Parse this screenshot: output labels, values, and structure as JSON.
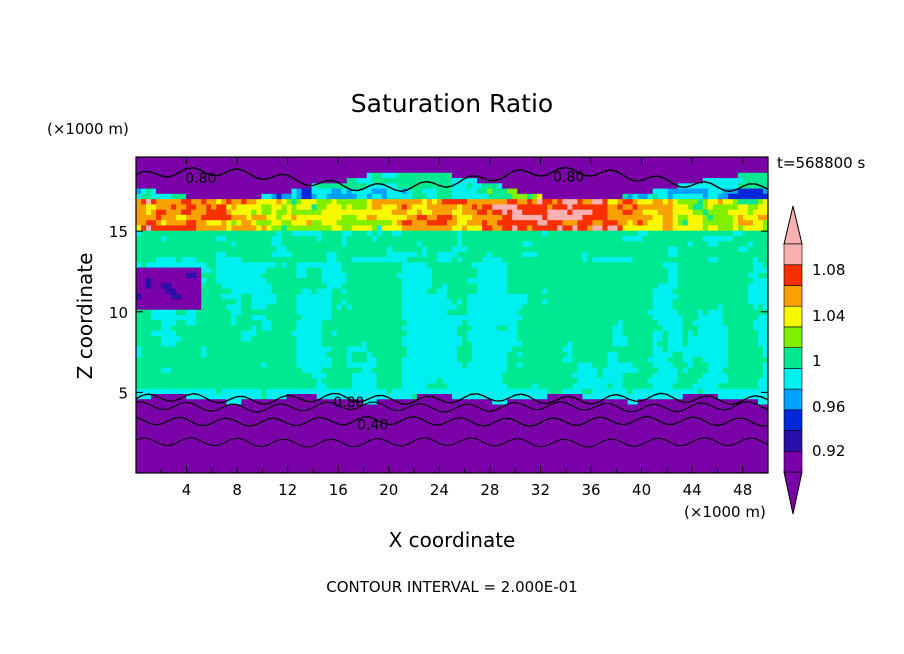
{
  "chart_data": {
    "type": "heatmap",
    "title": "Saturation Ratio",
    "xlabel": "X coordinate",
    "ylabel": "Z coordinate",
    "x_unit": "(×1000 m)",
    "y_unit": "(×1000 m)",
    "time_label": "t=568800 s",
    "footer": "CONTOUR INTERVAL = 2.000E-01",
    "xlim": [
      0,
      50
    ],
    "ylim": [
      0,
      19.6
    ],
    "x_ticks": [
      "4",
      "8",
      "12",
      "16",
      "20",
      "24",
      "28",
      "32",
      "36",
      "40",
      "44",
      "48"
    ],
    "y_ticks": [
      "5",
      "10",
      "15"
    ],
    "colorbar": {
      "labels": [
        "1.08",
        "1.04",
        "1",
        "0.96",
        "0.92"
      ],
      "levels": [
        0.9,
        0.92,
        0.94,
        0.96,
        0.98,
        1.0,
        1.02,
        1.04,
        1.06,
        1.08,
        1.1
      ],
      "colors": [
        "#7a00a8",
        "#2a10a8",
        "#0028d8",
        "#00a0ff",
        "#00f0f0",
        "#00e890",
        "#80f000",
        "#f8f800",
        "#f8a000",
        "#f83000",
        "#f8b0b0"
      ],
      "under_color": "#7a00a8",
      "over_color": "#f8b0b0"
    },
    "contour_labels": [
      "0.80",
      "0.80",
      "0.80",
      "0.40"
    ],
    "grid": false
  }
}
